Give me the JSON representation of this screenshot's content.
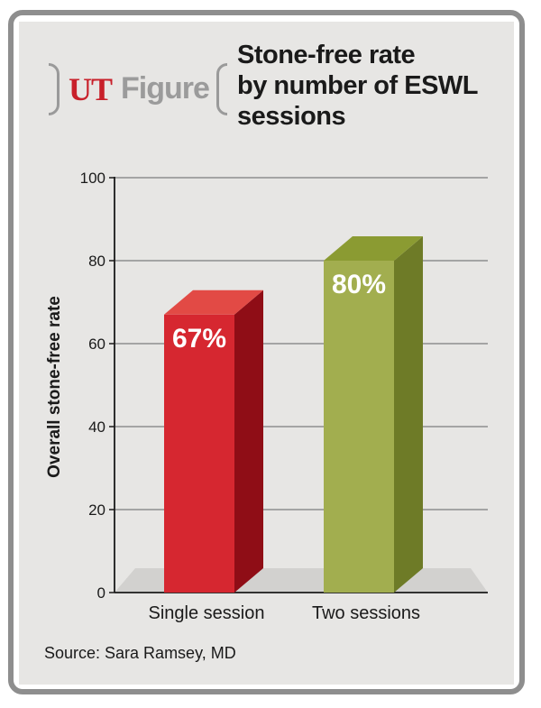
{
  "brand": {
    "ut": "UT",
    "figure": "Figure"
  },
  "title_lines": [
    "Stone-free rate",
    "by number of ESWL",
    "sessions"
  ],
  "source": "Source: Sara Ramsey, MD",
  "chart_data": {
    "type": "bar",
    "title": "Stone-free rate by number of ESWL sessions",
    "categories": [
      "Single session",
      "Two sessions"
    ],
    "values": [
      67,
      80
    ],
    "data_labels": [
      "67%",
      "80%"
    ],
    "colors": {
      "single": {
        "front": "#d62730",
        "side": "#8f0d16",
        "top": "#e24a45"
      },
      "two": {
        "front": "#a2ae4f",
        "side": "#6e7b27",
        "top": "#8b9b32"
      }
    },
    "xlabel": "",
    "ylabel": "Overall stone-free rate",
    "ylim": [
      0,
      100
    ],
    "yticks": [
      0,
      20,
      40,
      60,
      80,
      100
    ],
    "grid": true,
    "legend": "none"
  }
}
